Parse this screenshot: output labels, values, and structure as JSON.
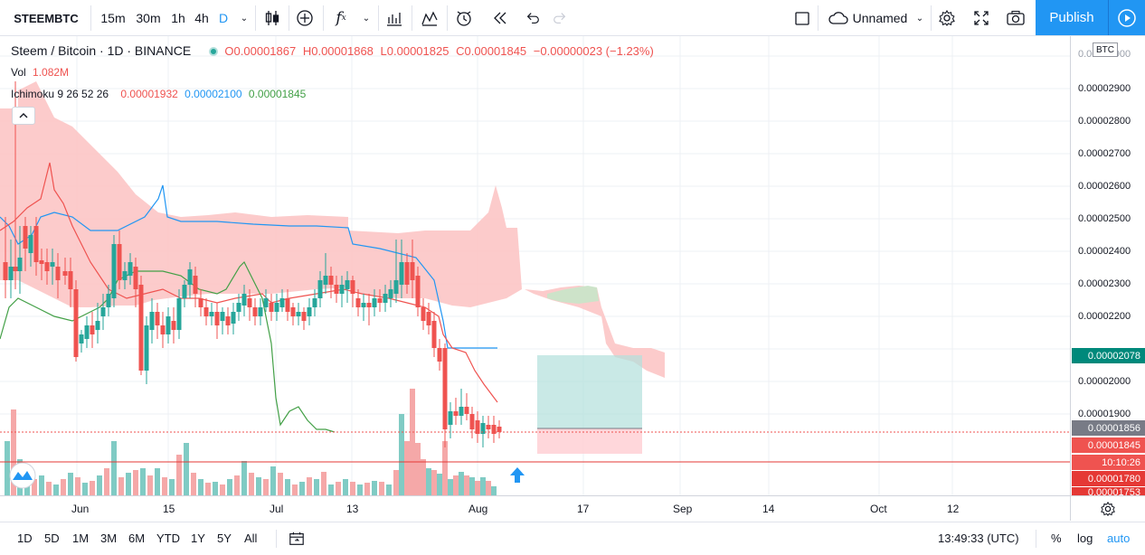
{
  "toolbar": {
    "symbol": "STEEMBTC",
    "timeframes": [
      "15m",
      "30m",
      "1h",
      "4h",
      "D"
    ],
    "active_timeframe": "D",
    "layout_name": "Unnamed",
    "publish_label": "Publish"
  },
  "legend": {
    "title": "Steem / Bitcoin · 1D · BINANCE",
    "open": "O0.00001867",
    "high": "H0.00001868",
    "low": "L0.00001825",
    "close": "C0.00001845",
    "change": "−0.00000023 (−1.23%)",
    "vol_label": "Vol",
    "vol_value": "1.082M",
    "ichimoku_label": "Ichimoku 9 26 52 26",
    "ichimoku_v1": "0.00001932",
    "ichimoku_v2": "0.00002100",
    "ichimoku_v3": "0.00001845"
  },
  "price_axis": {
    "currency": "BTC",
    "labels": [
      "0.00002900",
      "0.00002800",
      "0.00002700",
      "0.00002600",
      "0.00002500",
      "0.00002400",
      "0.00002300",
      "0.00002200",
      "0.00002000",
      "0.00001900"
    ],
    "tags": [
      {
        "text": "0.00002078",
        "color": "#00897b"
      },
      {
        "text": "0.00001856",
        "color": "#787b86"
      },
      {
        "text": "0.00001845",
        "color": "#ef5350"
      },
      {
        "text": "10:10:26",
        "color": "#ef5350"
      },
      {
        "text": "0.00001780",
        "color": "#e53935"
      },
      {
        "text": "0.00001753",
        "color": "#e53935"
      }
    ]
  },
  "time_axis": {
    "labels": [
      "Jun",
      "15",
      "Jul",
      "13",
      "Aug",
      "17",
      "Sep",
      "14",
      "Oct",
      "12"
    ]
  },
  "bottom_bar": {
    "ranges": [
      "1D",
      "5D",
      "1M",
      "3M",
      "6M",
      "YTD",
      "1Y",
      "5Y",
      "All"
    ],
    "clock": "13:49:33 (UTC)",
    "percent": "%",
    "log": "log",
    "auto": "auto"
  },
  "colors": {
    "up": "#26a69a",
    "down": "#ef5350",
    "accent": "#2196f3"
  },
  "chart_data": {
    "type": "candlestick",
    "title": "Steem / Bitcoin · 1D · BINANCE",
    "ylim": [
      1.75e-05,
      2.95e-05
    ],
    "last_close": 1.845e-05
  }
}
